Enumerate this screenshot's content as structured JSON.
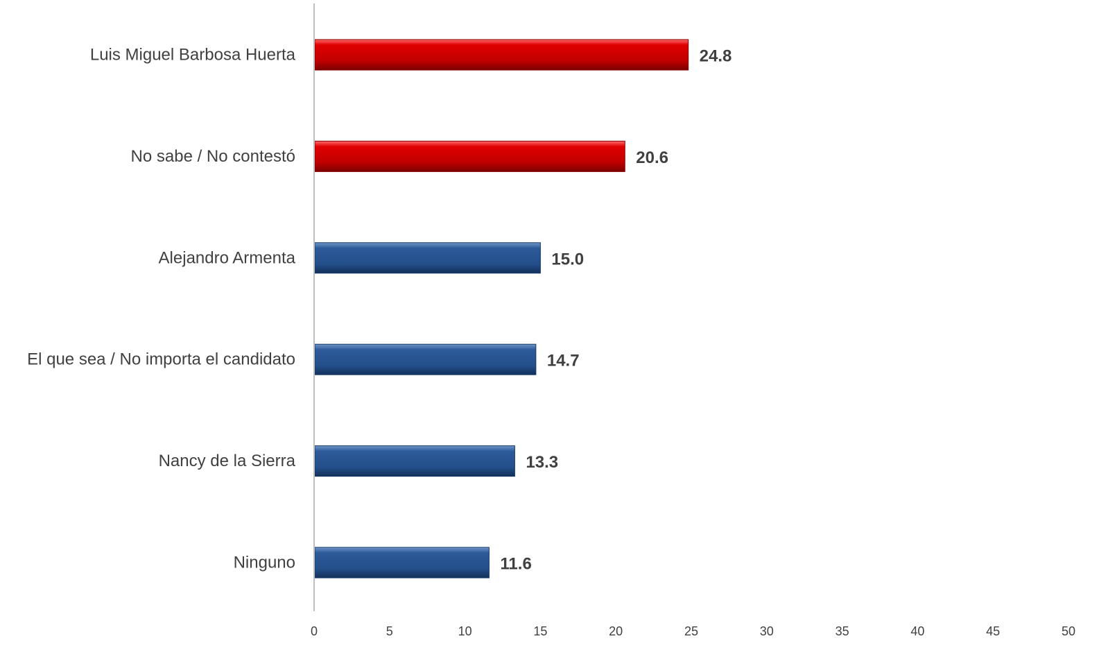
{
  "chart_data": {
    "type": "bar",
    "orientation": "horizontal",
    "categories": [
      "Luis Miguel Barbosa Huerta",
      "No sabe / No contestó",
      "Alejandro Armenta",
      "El que sea / No importa el candidato",
      "Nancy de la Sierra",
      "Ninguno"
    ],
    "values": [
      24.8,
      20.6,
      15.0,
      14.7,
      13.3,
      11.6
    ],
    "value_labels": [
      "24.8",
      "20.6",
      "15.0",
      "14.7",
      "13.3",
      "11.6"
    ],
    "bar_colors": [
      "#c00000",
      "#c00000",
      "#1f4e8c",
      "#1f4e8c",
      "#1f4e8c",
      "#1f4e8c"
    ],
    "xlim": [
      0,
      50
    ],
    "x_ticks": [
      0,
      5,
      10,
      15,
      20,
      25,
      30,
      35,
      40,
      45,
      50
    ],
    "title": "",
    "xlabel": "",
    "ylabel": "",
    "grid": false,
    "legend": "none"
  },
  "colors": {
    "highlight": "#c00000",
    "default": "#1f4e8c",
    "axis": "#bfbfbf",
    "text": "#404040"
  }
}
